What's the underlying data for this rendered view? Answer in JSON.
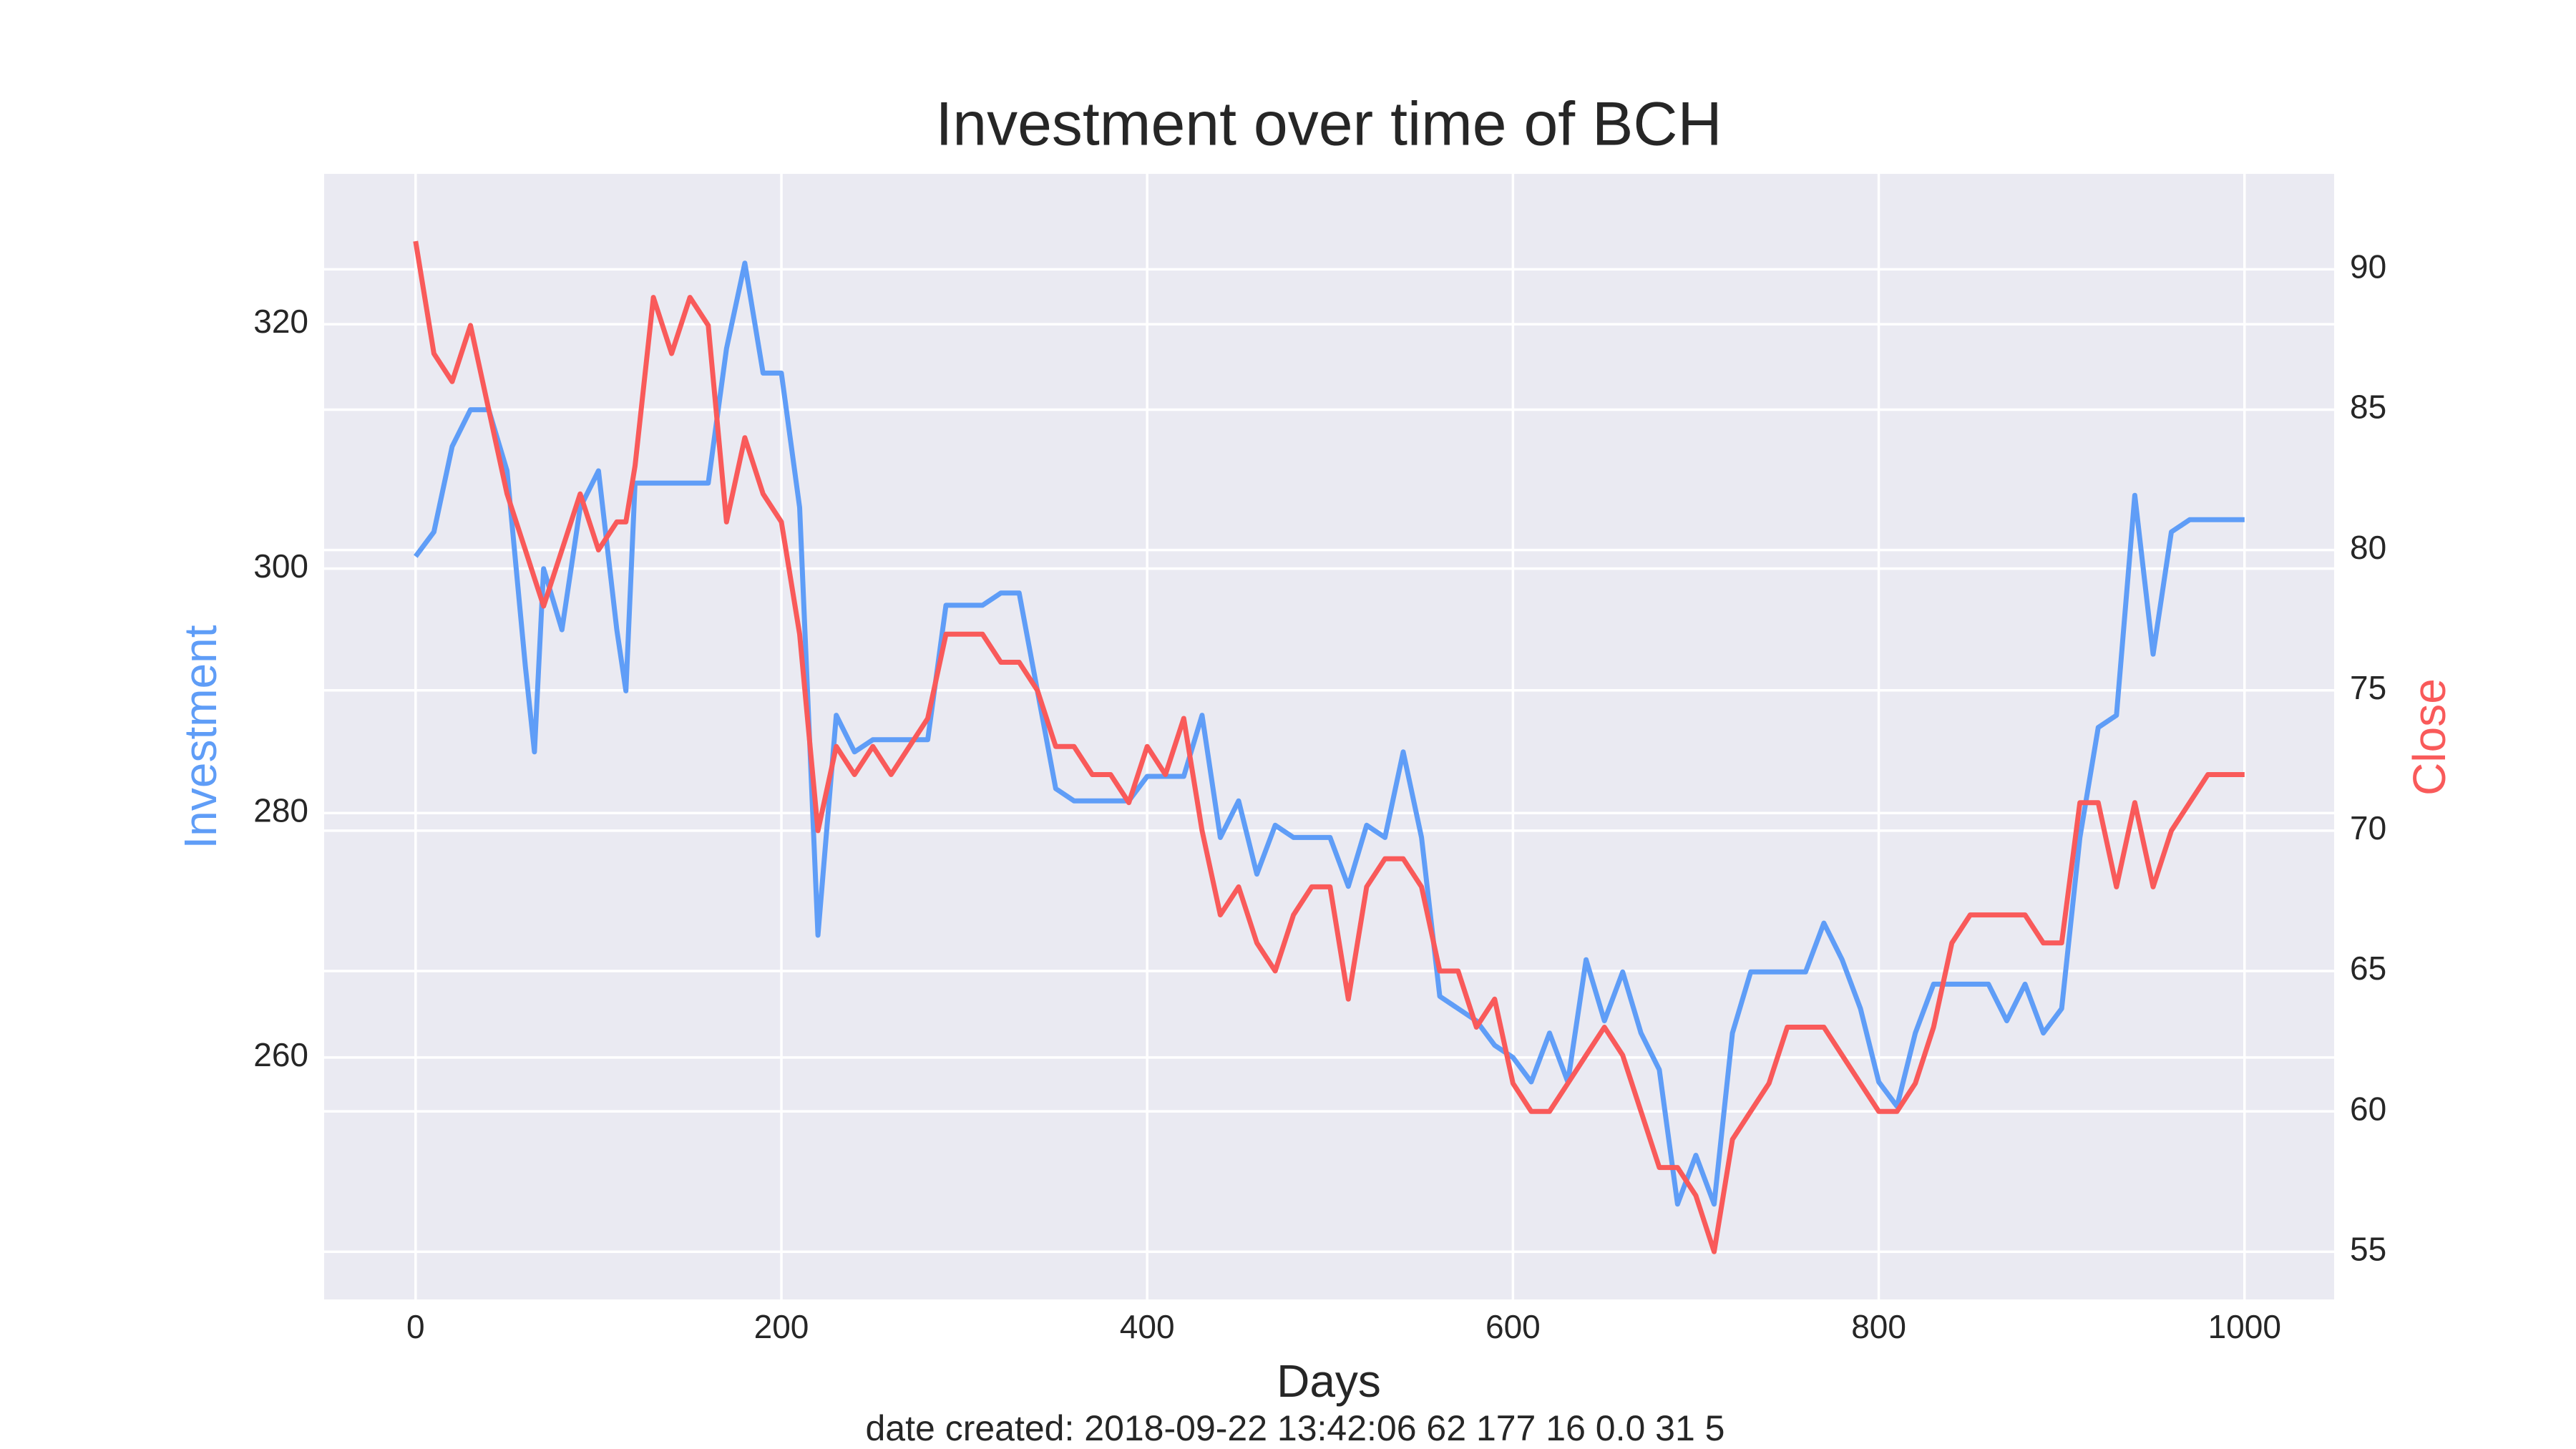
{
  "chart_data": {
    "type": "line",
    "title": "Investment over time of BCH",
    "xlabel": "Days",
    "ylabel": "Investment",
    "y2label": "Close",
    "footer": "date created: 2018-09-22 13:42:06 62 177 16 0.0 31 5",
    "x": [
      0,
      10,
      20,
      30,
      40,
      50,
      60,
      65,
      70,
      80,
      90,
      100,
      110,
      115,
      120,
      130,
      140,
      150,
      160,
      170,
      180,
      190,
      200,
      210,
      220,
      230,
      240,
      250,
      260,
      270,
      280,
      290,
      300,
      310,
      320,
      330,
      340,
      350,
      360,
      370,
      380,
      390,
      400,
      410,
      420,
      430,
      440,
      450,
      460,
      470,
      480,
      490,
      500,
      510,
      520,
      530,
      540,
      550,
      560,
      570,
      580,
      590,
      600,
      610,
      620,
      630,
      640,
      650,
      660,
      670,
      680,
      690,
      700,
      710,
      720,
      730,
      740,
      750,
      760,
      770,
      780,
      790,
      800,
      810,
      820,
      830,
      840,
      850,
      860,
      870,
      880,
      890,
      900,
      910,
      920,
      930,
      940,
      950,
      960,
      970,
      980,
      990,
      1000
    ],
    "series": [
      {
        "name": "Investment",
        "color": "#5f9df7",
        "axis": "y",
        "values": [
          301,
          303,
          310,
          313,
          313,
          308,
          292,
          285,
          300,
          295,
          305,
          308,
          295,
          290,
          307,
          307,
          307,
          307,
          307,
          318,
          325,
          316,
          316,
          305,
          270,
          288,
          285,
          286,
          286,
          286,
          286,
          297,
          297,
          297,
          298,
          298,
          290,
          282,
          281,
          281,
          281,
          281,
          283,
          283,
          283,
          288,
          278,
          281,
          275,
          279,
          278,
          278,
          278,
          274,
          279,
          278,
          285,
          278,
          265,
          264,
          263,
          261,
          260,
          258,
          262,
          258,
          268,
          263,
          267,
          262,
          259,
          248,
          252,
          248,
          262,
          267,
          267,
          267,
          267,
          271,
          268,
          264,
          258,
          256,
          262,
          266,
          266,
          266,
          266,
          263,
          266,
          262,
          264,
          278,
          287,
          288,
          306,
          293,
          303,
          304,
          304,
          304,
          304
        ]
      },
      {
        "name": "Close",
        "color": "#f95a5a",
        "axis": "y2",
        "values": [
          91,
          87,
          86,
          88,
          85,
          82,
          80,
          79,
          78,
          80,
          82,
          80,
          81,
          81,
          83,
          89,
          87,
          89,
          88,
          81,
          84,
          82,
          81,
          77,
          70,
          73,
          72,
          73,
          72,
          73,
          74,
          77,
          77,
          77,
          76,
          76,
          75,
          73,
          73,
          72,
          72,
          71,
          73,
          72,
          74,
          70,
          67,
          68,
          66,
          65,
          67,
          68,
          68,
          64,
          68,
          69,
          69,
          68,
          65,
          65,
          63,
          64,
          61,
          60,
          60,
          61,
          62,
          63,
          62,
          60,
          58,
          58,
          57,
          55,
          59,
          60,
          61,
          63,
          63,
          63,
          62,
          61,
          60,
          60,
          61,
          63,
          66,
          67,
          67,
          67,
          67,
          66,
          66,
          71,
          71,
          68,
          71,
          68,
          70,
          71,
          72,
          72,
          72
        ]
      }
    ],
    "xlim": [
      -50,
      1049
    ],
    "xticks": [
      0,
      200,
      400,
      600,
      800,
      1000
    ],
    "ylim": [
      240.2,
      332.3
    ],
    "yticks": [
      260,
      280,
      300,
      320
    ],
    "y2lim": [
      53.3,
      93.4
    ],
    "y2ticks": [
      55,
      60,
      65,
      70,
      75,
      80,
      85,
      90
    ],
    "grid": true,
    "background": "#eaeaf2"
  }
}
